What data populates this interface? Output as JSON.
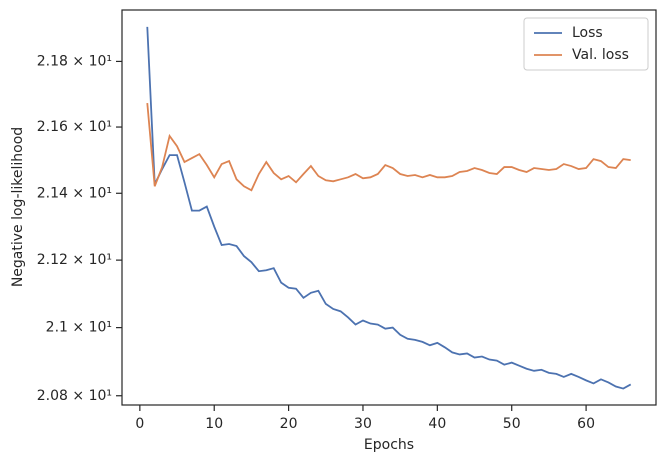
{
  "chart_data": {
    "type": "line",
    "xlabel": "Epochs",
    "ylabel": "Negative log-likelihood",
    "x": [
      1,
      2,
      3,
      4,
      5,
      6,
      7,
      8,
      9,
      10,
      11,
      12,
      13,
      14,
      15,
      16,
      17,
      18,
      19,
      20,
      21,
      22,
      23,
      24,
      25,
      26,
      27,
      28,
      29,
      30,
      31,
      32,
      33,
      34,
      35,
      36,
      37,
      38,
      39,
      40,
      41,
      42,
      43,
      44,
      45,
      46,
      47,
      48,
      49,
      50,
      51,
      52,
      53,
      54,
      55,
      56,
      57,
      58,
      59,
      60,
      61,
      62,
      63,
      64,
      65,
      66
    ],
    "series": [
      {
        "name": "Loss",
        "color": "#4c72b0",
        "values": [
          21.906,
          21.427,
          21.473,
          21.515,
          21.515,
          21.433,
          21.348,
          21.348,
          21.36,
          21.3,
          21.245,
          21.248,
          21.242,
          21.212,
          21.194,
          21.167,
          21.17,
          21.176,
          21.133,
          21.118,
          21.115,
          21.088,
          21.103,
          21.109,
          21.07,
          21.055,
          21.048,
          21.03,
          21.009,
          21.021,
          21.012,
          21.009,
          20.997,
          21.0,
          20.979,
          20.967,
          20.964,
          20.958,
          20.948,
          20.955,
          20.942,
          20.927,
          20.921,
          20.924,
          20.912,
          20.915,
          20.906,
          20.903,
          20.891,
          20.897,
          20.888,
          20.879,
          20.873,
          20.876,
          20.867,
          20.864,
          20.855,
          20.864,
          20.855,
          20.845,
          20.836,
          20.848,
          20.839,
          20.827,
          20.821,
          20.833
        ]
      },
      {
        "name": "Val. loss",
        "color": "#dd8452",
        "values": [
          21.673,
          21.421,
          21.479,
          21.573,
          21.542,
          21.494,
          21.506,
          21.518,
          21.485,
          21.448,
          21.488,
          21.497,
          21.442,
          21.421,
          21.409,
          21.458,
          21.494,
          21.461,
          21.442,
          21.452,
          21.433,
          21.458,
          21.482,
          21.452,
          21.439,
          21.436,
          21.442,
          21.448,
          21.458,
          21.445,
          21.448,
          21.458,
          21.485,
          21.476,
          21.458,
          21.452,
          21.455,
          21.448,
          21.455,
          21.448,
          21.448,
          21.452,
          21.464,
          21.467,
          21.476,
          21.47,
          21.461,
          21.458,
          21.479,
          21.479,
          21.47,
          21.464,
          21.476,
          21.473,
          21.47,
          21.473,
          21.488,
          21.482,
          21.473,
          21.476,
          21.503,
          21.497,
          21.479,
          21.476,
          21.503,
          21.5
        ]
      }
    ],
    "xlim": [
      -2.4,
      69.4
    ],
    "xticks": [
      0,
      10,
      20,
      30,
      40,
      50,
      60
    ],
    "ylim": [
      20.773,
      21.958
    ],
    "yscale": "log",
    "yticks": [
      {
        "value": 20.8,
        "label": "2.08 × 10¹"
      },
      {
        "value": 21.0,
        "label": "2.1 × 10¹"
      },
      {
        "value": 21.2,
        "label": "2.12 × 10¹"
      },
      {
        "value": 21.4,
        "label": "2.14 × 10¹"
      },
      {
        "value": 21.6,
        "label": "2.16 × 10¹"
      },
      {
        "value": 21.8,
        "label": "2.18 × 10¹"
      }
    ],
    "legend": "upper right"
  }
}
